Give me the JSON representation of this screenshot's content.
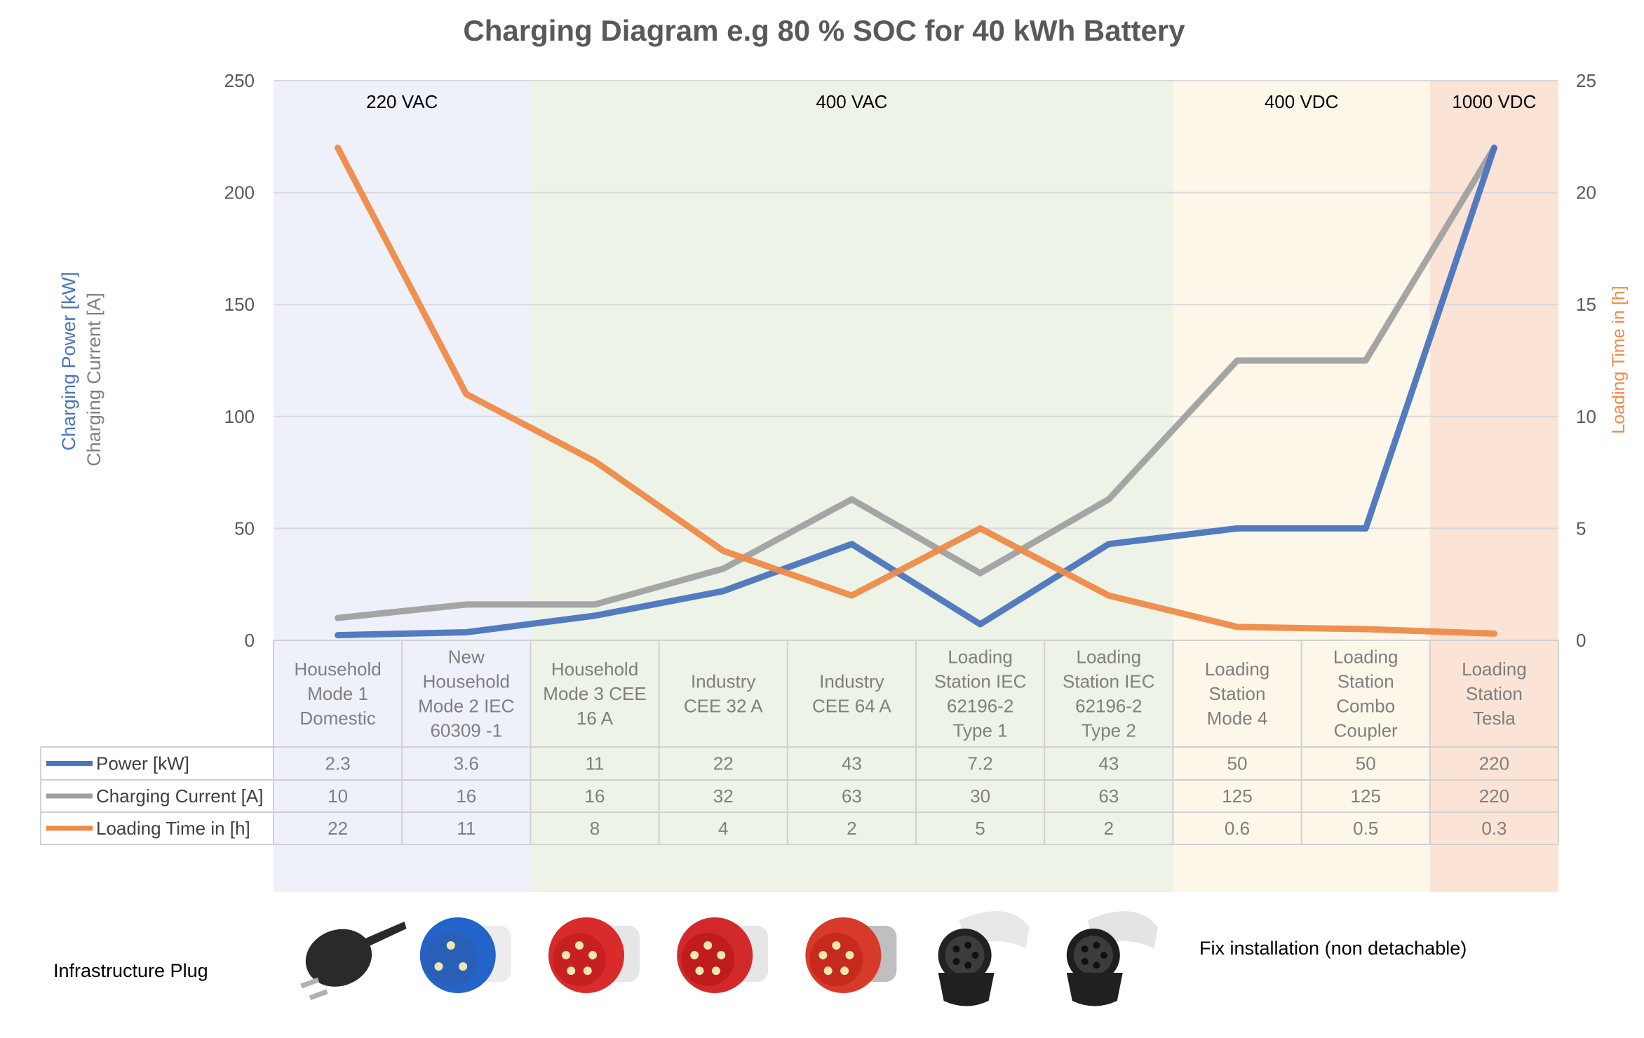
{
  "chart_data": {
    "type": "line",
    "title": "Charging Diagram e.g 80 % SOC for 40 kWh Battery",
    "ylabel_left_power": "Charging Power [kW]",
    "ylabel_left_current": "Charging Current [A]",
    "ylabel_right": "Loading Time in [h]",
    "ylim_left": [
      0,
      250
    ],
    "ylim_right": [
      0,
      25
    ],
    "yticks_left": [
      "0",
      "50",
      "100",
      "150",
      "200",
      "250"
    ],
    "yticks_right": [
      "0",
      "5",
      "10",
      "15",
      "20",
      "25"
    ],
    "grid": true,
    "categories": [
      [
        "Household",
        "Mode 1",
        "Domestic"
      ],
      [
        "New",
        "Household",
        "Mode 2 IEC",
        "60309 -1"
      ],
      [
        "Household",
        "Mode 3 CEE",
        "16 A"
      ],
      [
        "Industry",
        "CEE 32 A"
      ],
      [
        "Industry",
        "CEE 64 A"
      ],
      [
        "Loading",
        "Station  IEC",
        "62196-2",
        "Type 1"
      ],
      [
        "Loading",
        "Station  IEC",
        "62196-2",
        "Type 2"
      ],
      [
        "Loading",
        "Station",
        "Mode 4"
      ],
      [
        "Loading",
        "Station",
        "Combo",
        "Coupler"
      ],
      [
        "Loading",
        "Station",
        "Tesla"
      ]
    ],
    "regions": [
      {
        "label": "220 VAC",
        "from": 0,
        "to": 2,
        "color": "#eef1f9"
      },
      {
        "label": "400 VAC",
        "from": 2,
        "to": 7,
        "color": "#edf3e6"
      },
      {
        "label": "400 VDC",
        "from": 7,
        "to": 9,
        "color": "#fdf7ea"
      },
      {
        "label": "1000 VDC",
        "from": 9,
        "to": 10,
        "color": "#fbe4d6"
      }
    ],
    "series": [
      {
        "name": "Power [kW]",
        "axis": "left",
        "color": "#4a74be",
        "values": [
          2.3,
          3.6,
          11,
          22,
          43,
          7.2,
          43,
          50,
          50,
          220
        ],
        "labels": [
          "2.3",
          "3.6",
          "11",
          "22",
          "43",
          "7.2",
          "43",
          "50",
          "50",
          "220"
        ]
      },
      {
        "name": "Charging Current [A]",
        "axis": "left",
        "color": "#a0a0a0",
        "values": [
          10,
          16,
          16,
          32,
          63,
          30,
          63,
          125,
          125,
          220
        ],
        "labels": [
          "10",
          "16",
          "16",
          "32",
          "63",
          "30",
          "63",
          "125",
          "125",
          "220"
        ]
      },
      {
        "name": "Loading Time in [h]",
        "axis": "right",
        "color": "#ee8a48",
        "values": [
          22,
          11,
          8,
          4,
          2,
          5,
          2,
          0.6,
          0.5,
          0.3
        ],
        "labels": [
          "22",
          "11",
          "8",
          "4",
          "2",
          "5",
          "2",
          "0.6",
          "0.5",
          "0.3"
        ]
      }
    ],
    "plug_row_label": "Infrastructure Plug",
    "plug_note": "Fix installation (non detachable)",
    "plugs": [
      {
        "name": "schuko-plug",
        "body": "#2a2a2a",
        "face": "#3a3a3a"
      },
      {
        "name": "blue-cee-plug",
        "body": "#2364c8",
        "face": "#2a5fb8"
      },
      {
        "name": "red-cee16-plug",
        "body": "#d92b2b",
        "face": "#c62020"
      },
      {
        "name": "red-cee32-plug",
        "body": "#d22a2a",
        "face": "#c01c1c"
      },
      {
        "name": "red-cee64-plug",
        "body": "#d83a2a",
        "face": "#c62a1c"
      },
      {
        "name": "type1-connector",
        "body": "#e8e8e8",
        "face": "#222222"
      },
      {
        "name": "type2-connector",
        "body": "#e4e4e4",
        "face": "#1e1e1e"
      }
    ]
  }
}
